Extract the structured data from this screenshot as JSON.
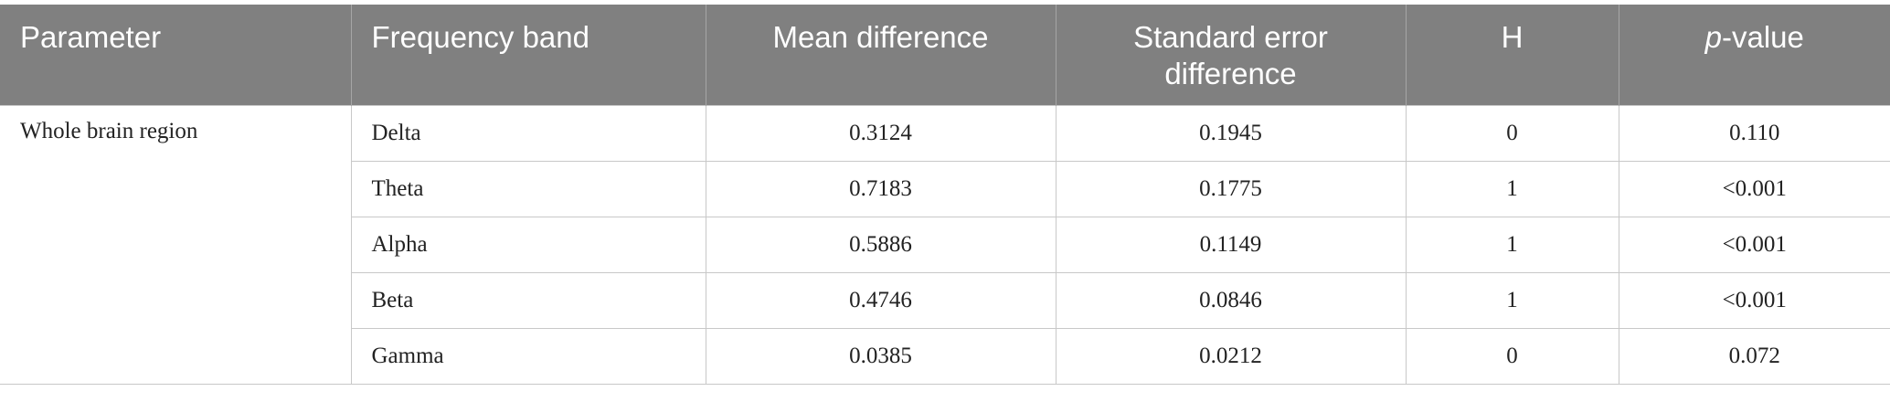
{
  "table": {
    "columns": [
      "Parameter",
      "Frequency band",
      "Mean difference",
      "Standard error difference",
      "H",
      {
        "italic": "p",
        "text": "-value"
      }
    ],
    "group": "Whole brain region",
    "rows": [
      [
        "Delta",
        "0.3124",
        "0.1945",
        "0",
        "0.110"
      ],
      [
        "Theta",
        "0.7183",
        "0.1775",
        "1",
        "<0.001"
      ],
      [
        "Alpha",
        "0.5886",
        "0.1149",
        "1",
        "<0.001"
      ],
      [
        "Beta",
        "0.4746",
        "0.0846",
        "1",
        "<0.001"
      ],
      [
        "Gamma",
        "0.0385",
        "0.0212",
        "0",
        "0.072"
      ]
    ]
  }
}
